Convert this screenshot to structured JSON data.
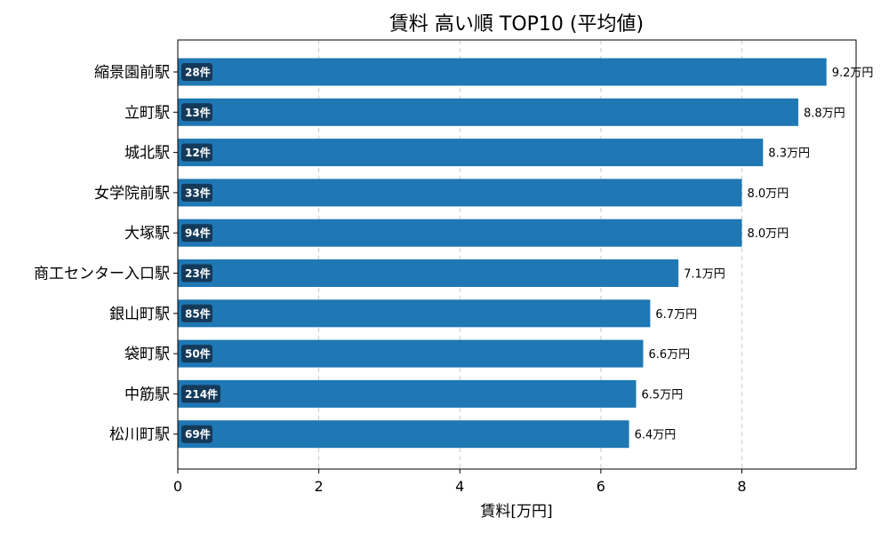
{
  "chart_data": {
    "type": "bar",
    "orientation": "horizontal",
    "title": "賃料 高い順 TOP10 (平均値)",
    "xlabel": "賃料[万円]",
    "ylabel": "",
    "xlim": [
      0,
      9.62
    ],
    "xticks": [
      0,
      2,
      4,
      6,
      8
    ],
    "grid": "x-dashed",
    "color": "#1f77b4",
    "badge_color": "#143a5a",
    "value_suffix": "万円",
    "count_suffix": "件",
    "categories": [
      "縮景園前駅",
      "立町駅",
      "城北駅",
      "女学院前駅",
      "大塚駅",
      "商工センター入口駅",
      "銀山町駅",
      "袋町駅",
      "中筋駅",
      "松川町駅"
    ],
    "values": [
      9.2,
      8.8,
      8.3,
      8.0,
      8.0,
      7.1,
      6.7,
      6.6,
      6.5,
      6.4
    ],
    "value_labels": [
      "9.2万円",
      "8.8万円",
      "8.3万円",
      "8.0万円",
      "8.0万円",
      "7.1万円",
      "6.7万円",
      "6.6万円",
      "6.5万円",
      "6.4万円"
    ],
    "counts": [
      28,
      13,
      12,
      33,
      94,
      23,
      85,
      50,
      214,
      69
    ],
    "count_labels": [
      "28件",
      "13件",
      "12件",
      "33件",
      "94件",
      "23件",
      "85件",
      "50件",
      "214件",
      "69件"
    ]
  }
}
